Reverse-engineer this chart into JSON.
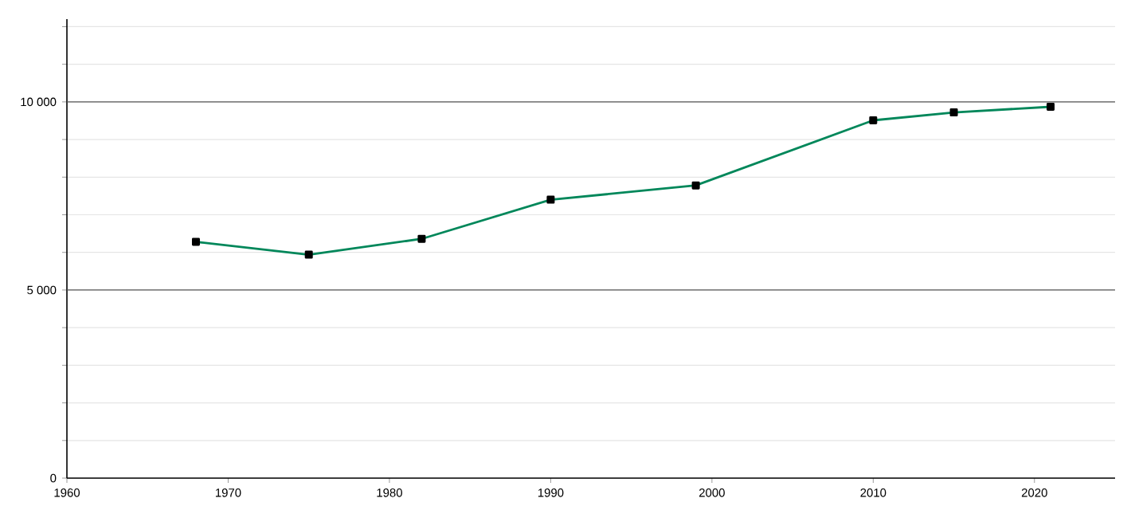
{
  "chart_data": {
    "type": "line",
    "x": [
      1968,
      1975,
      1982,
      1990,
      1999,
      2010,
      2015,
      2021
    ],
    "series": [
      {
        "color": "#00875a",
        "values": [
          6280,
          5940,
          6360,
          7400,
          7780,
          9510,
          9720,
          9870
        ]
      }
    ],
    "xlim": [
      1960,
      2025
    ],
    "ylim": [
      0,
      12200
    ],
    "xticks": [
      1960,
      1970,
      1980,
      1990,
      2000,
      2010,
      2020
    ],
    "yticks": [
      {
        "value": 0,
        "label": "0"
      },
      {
        "value": 1000,
        "label": null
      },
      {
        "value": 2000,
        "label": null
      },
      {
        "value": 3000,
        "label": null
      },
      {
        "value": 4000,
        "label": null
      },
      {
        "value": 5000,
        "label": "5 000"
      },
      {
        "value": 6000,
        "label": null
      },
      {
        "value": 7000,
        "label": null
      },
      {
        "value": 8000,
        "label": null
      },
      {
        "value": 9000,
        "label": null
      },
      {
        "value": 10000,
        "label": "10 000"
      },
      {
        "value": 11000,
        "label": null
      },
      {
        "value": 12000,
        "label": null
      }
    ],
    "grid": "y",
    "marker": "square",
    "line_style": "solid"
  }
}
